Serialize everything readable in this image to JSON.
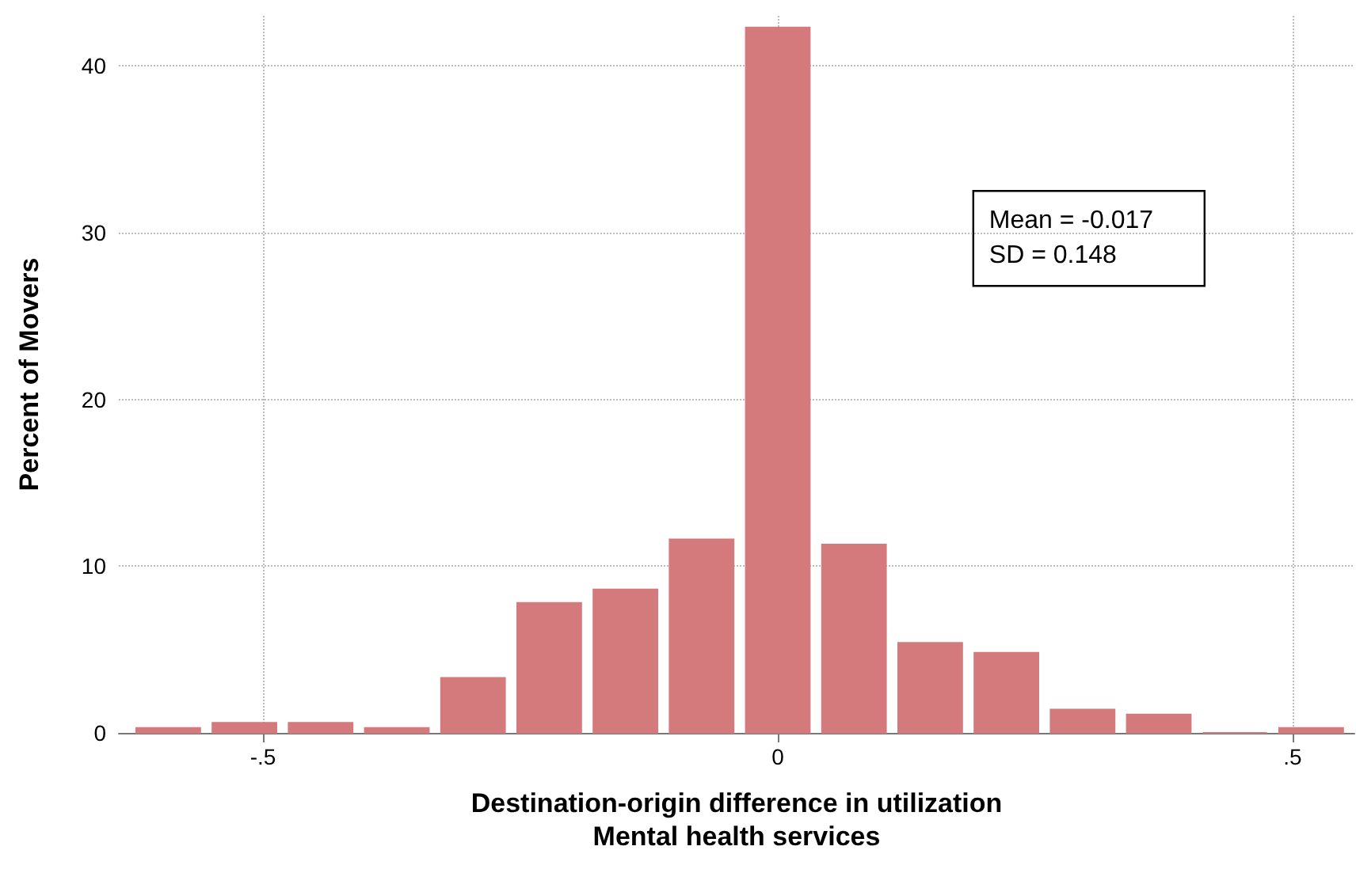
{
  "chart_data": {
    "type": "histogram",
    "bins": [
      -0.629,
      -0.555,
      -0.481,
      -0.407,
      -0.333,
      -0.259,
      -0.185,
      -0.111,
      -0.037,
      0.037,
      0.111,
      0.185,
      0.259,
      0.333,
      0.407,
      0.481,
      0.555
    ],
    "values": [
      0.3,
      0.6,
      0.6,
      0.3,
      3.3,
      7.8,
      8.6,
      11.6,
      42.3,
      11.3,
      5.4,
      4.8,
      1.4,
      1.1,
      0,
      0.3
    ],
    "color": "#d47a7c",
    "xlabel": "Destination-origin difference in utilization\nMental health services",
    "ylabel": "Percent of Movers",
    "annotations": [
      "Mean = -0.017",
      "SD = 0.148"
    ],
    "xlim": [
      -0.64,
      0.56
    ],
    "xticks": [
      {
        "value": -0.5,
        "label": "-.5"
      },
      0,
      {
        "value": 0.5,
        "label": ".5"
      }
    ],
    "ylim": [
      0,
      43
    ],
    "yticks": [
      0,
      10,
      20,
      30,
      40
    ],
    "grid": true
  }
}
